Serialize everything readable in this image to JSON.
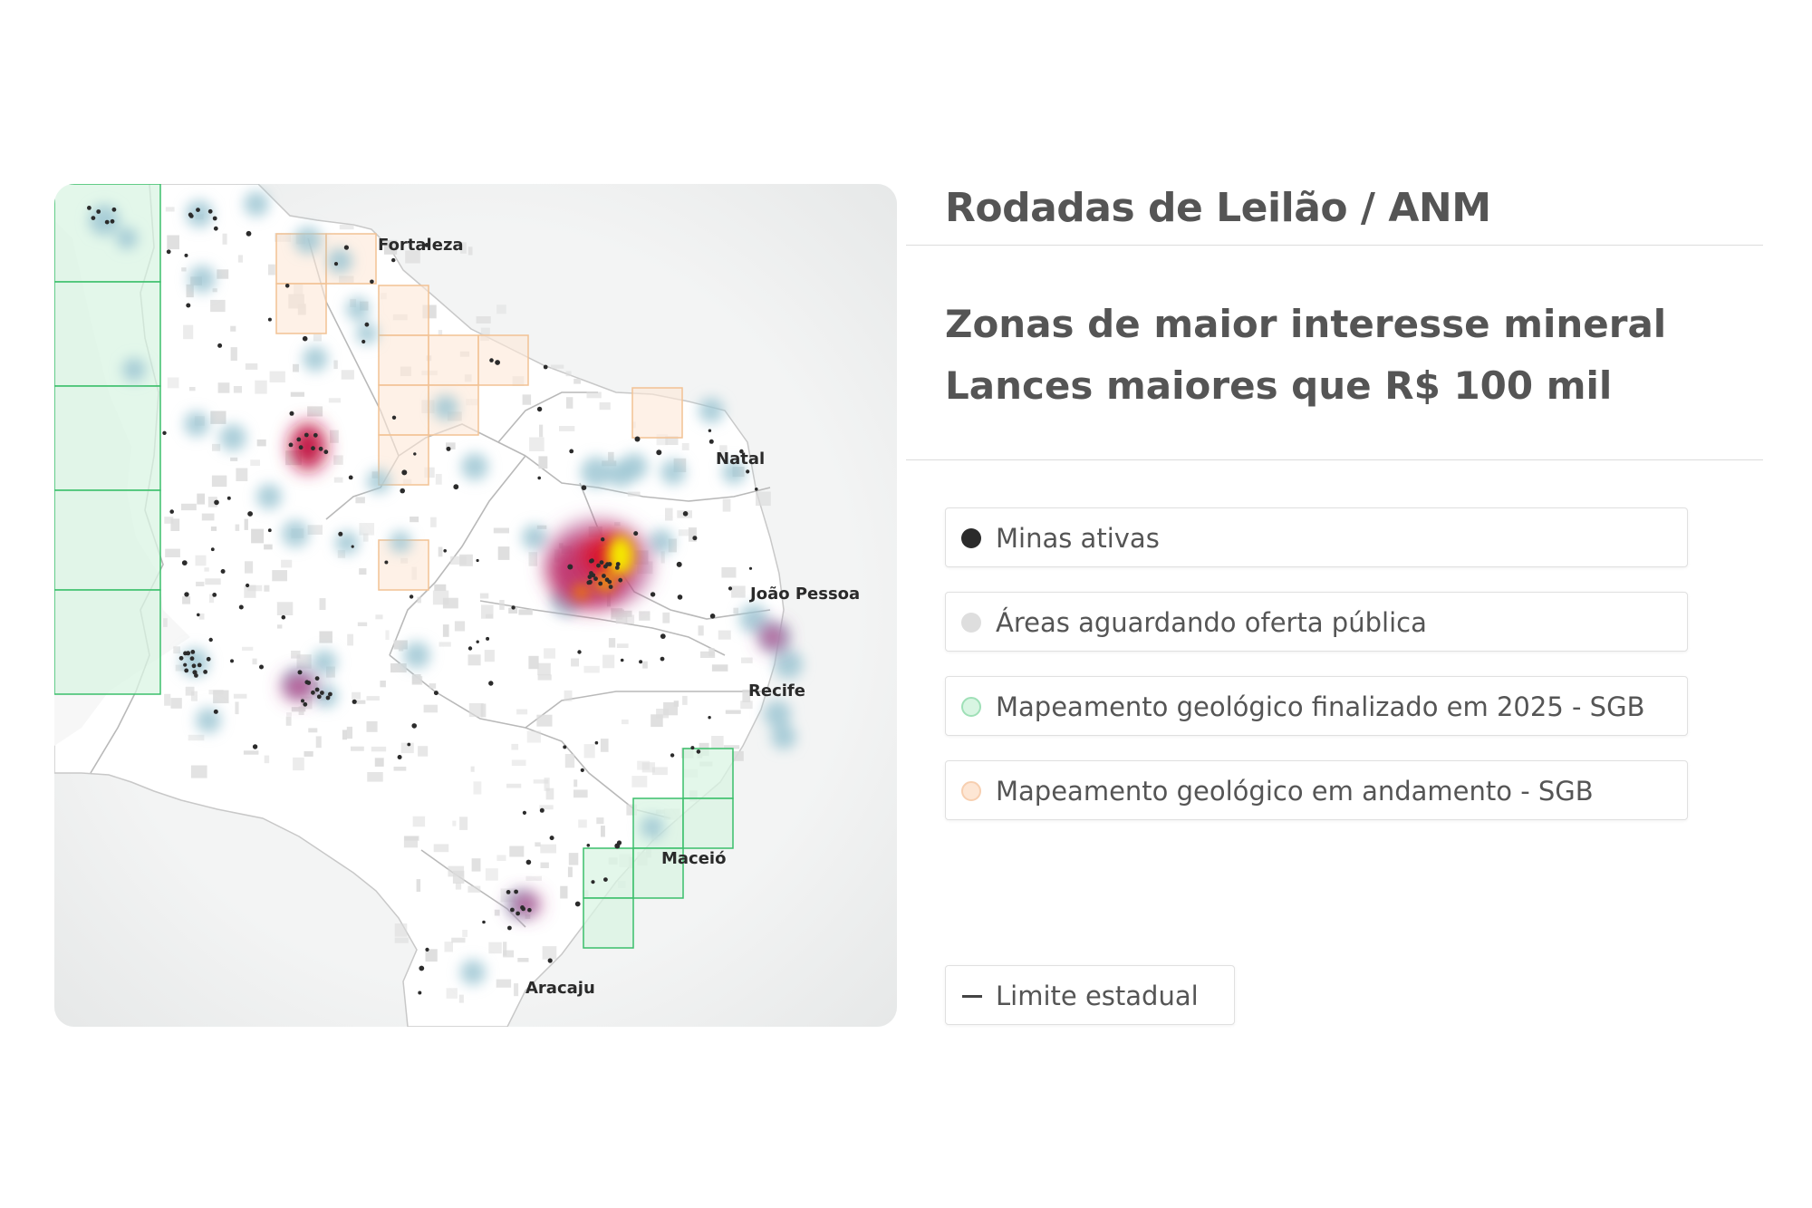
{
  "header": {
    "title": "Rodadas de Leilão / ANM",
    "subtitle_line1": "Zonas de maior interesse mineral",
    "subtitle_line2": "Lances maiores que R$ 100 mil"
  },
  "map": {
    "cities": [
      "Fortaleza",
      "Natal",
      "João Pessoa",
      "Recife",
      "Maceió",
      "Aracaju"
    ],
    "colors": {
      "land": "#ffffff",
      "sea": "#eceeee",
      "state_border": "#b9b9b9",
      "awaiting_area": "#dcdcdc",
      "mine": "#2b2b2b",
      "heat_low": "#9ec7d4",
      "heat_mid": "#c0336d",
      "heat_high": "#f5e800",
      "finished_grid": "#3bbf6b",
      "ongoing_grid": "#f2c294"
    }
  },
  "legend": {
    "items": [
      {
        "label": "Minas ativas",
        "color": "#2b2b2b"
      },
      {
        "label": "Áreas aguardando oferta pública",
        "color": "#dedede"
      },
      {
        "label": "Mapeamento geológico finalizado em 2025 - SGB",
        "color": "#d8f5e2",
        "border": "#9fe0b7"
      },
      {
        "label": "Mapeamento geológico em andamento - SGB",
        "color": "#fde6d4",
        "border": "#f7cfb0"
      }
    ],
    "state_limit": {
      "label": "Limite estadual",
      "color": "#444444"
    }
  }
}
